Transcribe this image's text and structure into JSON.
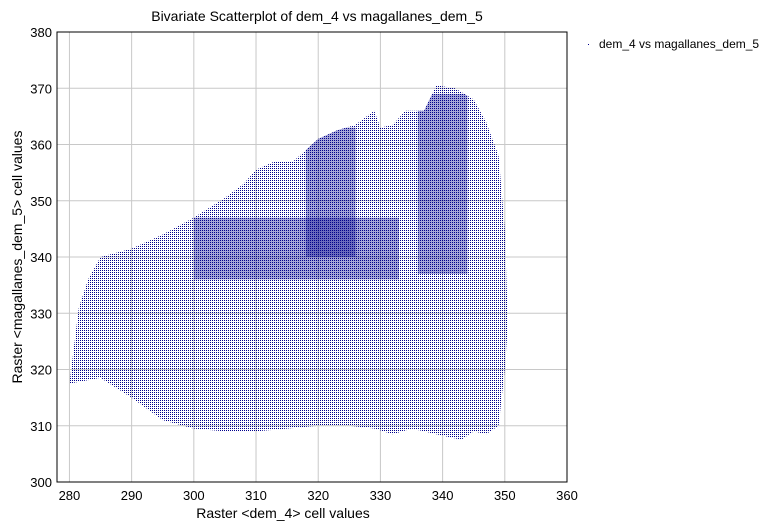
{
  "chart_data": {
    "type": "scatter",
    "title": "Bivariate Scatterplot of dem_4 vs magallanes_dem_5",
    "xlabel": "Raster <dem_4> cell values",
    "ylabel": "Raster <magallanes_dem_5> cell values",
    "xlim": [
      278,
      360
    ],
    "ylim": [
      300,
      380
    ],
    "xticks": [
      "280",
      "290",
      "300",
      "310",
      "320",
      "330",
      "340",
      "350",
      "360"
    ],
    "yticks": [
      "300",
      "310",
      "320",
      "330",
      "340",
      "350",
      "360",
      "370",
      "380"
    ],
    "grid": true,
    "legend_position": "top-right",
    "series": [
      {
        "name": "dem_4 vs magallanes_dem_5",
        "color": "#00008b",
        "marker": "point",
        "upper_envelope": [
          [
            280,
            317.5
          ],
          [
            281.5,
            331
          ],
          [
            283,
            336
          ],
          [
            285,
            340
          ],
          [
            290,
            341.5
          ],
          [
            295,
            344
          ],
          [
            300,
            347
          ],
          [
            305,
            350.5
          ],
          [
            308,
            353
          ],
          [
            310,
            355.5
          ],
          [
            313,
            357
          ],
          [
            316,
            357
          ],
          [
            320,
            361
          ],
          [
            323,
            362.5
          ],
          [
            326,
            363.5
          ],
          [
            329,
            366
          ],
          [
            330,
            363
          ],
          [
            332,
            363.5
          ],
          [
            334,
            366
          ],
          [
            337,
            366
          ],
          [
            339,
            370.5
          ],
          [
            342,
            370
          ],
          [
            345,
            368
          ],
          [
            347,
            364
          ],
          [
            349,
            358
          ],
          [
            350,
            345
          ],
          [
            350.5,
            328
          ]
        ],
        "lower_envelope": [
          [
            280,
            317.5
          ],
          [
            285,
            318.5
          ],
          [
            290,
            315
          ],
          [
            295,
            311
          ],
          [
            300,
            309.5
          ],
          [
            305,
            309
          ],
          [
            310,
            309
          ],
          [
            315,
            309.5
          ],
          [
            320,
            310
          ],
          [
            325,
            310
          ],
          [
            329,
            309.5
          ],
          [
            332,
            308.5
          ],
          [
            335,
            309.5
          ],
          [
            337,
            309
          ],
          [
            339,
            308.5
          ],
          [
            341,
            308
          ],
          [
            343,
            307.5
          ],
          [
            345,
            309
          ],
          [
            347,
            308.5
          ],
          [
            349,
            310
          ],
          [
            350,
            320
          ],
          [
            350.5,
            328
          ]
        ]
      }
    ]
  }
}
